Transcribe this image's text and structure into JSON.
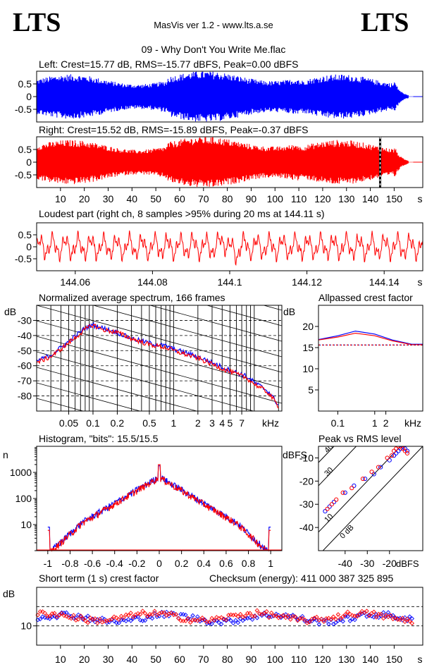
{
  "header": {
    "logo_left": "LTS",
    "logo_right": "LTS",
    "app_title": "MasVis ver 1.2 - www.lts.a.se",
    "file_title": "09 - Why Don't You Write Me.flac"
  },
  "colors": {
    "left": "#0000ff",
    "right": "#ff0000",
    "axis": "#000000",
    "grid": "#000000"
  },
  "chart_data": [
    {
      "id": "left-waveform",
      "type": "area",
      "title": "Left: Crest=15.77 dB, RMS=-15.77 dBFS, Peak=0.00 dBFS",
      "ylim": [
        -1,
        1
      ],
      "yticks": [
        "0.5",
        "0",
        "-0.5"
      ],
      "ytick_values": [
        0.5,
        0,
        -0.5
      ],
      "xlim": [
        0,
        162
      ],
      "duration_s": 158,
      "series": [
        {
          "color": "#0000ff",
          "peak": 1.0,
          "rms_dbfs": -15.77
        }
      ]
    },
    {
      "id": "right-waveform",
      "type": "area",
      "title": "Right: Crest=15.52 dB, RMS=-15.89 dBFS, Peak=-0.37 dBFS",
      "ylim": [
        -1,
        1
      ],
      "yticks": [
        "0.5",
        "0",
        "-0.5"
      ],
      "ytick_values": [
        0.5,
        0,
        -0.5
      ],
      "xlim": [
        0,
        162
      ],
      "xunit": "s",
      "xticks": [
        "10",
        "20",
        "30",
        "40",
        "50",
        "60",
        "70",
        "80",
        "90",
        "100",
        "110",
        "120",
        "130",
        "140",
        "150"
      ],
      "xtick_values": [
        10,
        20,
        30,
        40,
        50,
        60,
        70,
        80,
        90,
        100,
        110,
        120,
        130,
        140,
        150
      ],
      "marker_x": 144.11,
      "series": [
        {
          "color": "#ff0000",
          "peak": 0.96,
          "rms_dbfs": -15.89
        }
      ]
    },
    {
      "id": "loudest-part",
      "type": "line",
      "title": "Loudest part (right ch, 8 samples >95% during 20 ms at 144.11 s)",
      "ylim": [
        -1,
        1
      ],
      "yticks": [
        "0.5",
        "0",
        "-0.5"
      ],
      "ytick_values": [
        0.5,
        0,
        -0.5
      ],
      "xlim": [
        144.05,
        144.15
      ],
      "xunit": "s",
      "xticks": [
        "144.06",
        "144.08",
        "144.1",
        "144.12",
        "144.14"
      ],
      "xtick_values": [
        144.06,
        144.08,
        144.1,
        144.12,
        144.14
      ],
      "series": [
        {
          "color": "#ff0000"
        }
      ]
    },
    {
      "id": "spectrum",
      "type": "line",
      "title": "Normalized average spectrum, 166 frames",
      "ylabel": "dB",
      "ylim": [
        -90,
        -20
      ],
      "yticks": [
        "-30",
        "-40",
        "-50",
        "-60",
        "-70",
        "-80"
      ],
      "ytick_values": [
        -30,
        -40,
        -50,
        -60,
        -70,
        -80
      ],
      "xscale": "log",
      "xlim": [
        0.02,
        22
      ],
      "xunit": "kHz",
      "xticks": [
        "0.05",
        "0.1",
        "0.2",
        "0.5",
        "1",
        "2",
        "3",
        "4",
        "5",
        "7"
      ],
      "xtick_values": [
        0.05,
        0.1,
        0.2,
        0.5,
        1,
        2,
        3,
        4,
        5,
        7
      ],
      "series": [
        {
          "color": "#0000ff",
          "x": [
            0.02,
            0.03,
            0.05,
            0.08,
            0.1,
            0.13,
            0.2,
            0.3,
            0.5,
            0.8,
            1,
            2,
            3,
            5,
            8,
            10,
            15,
            20
          ],
          "y": [
            -57,
            -53,
            -44,
            -35,
            -33,
            -35,
            -38,
            -42,
            -45,
            -47,
            -49,
            -54,
            -58,
            -63,
            -67,
            -71,
            -77,
            -86
          ]
        },
        {
          "color": "#ff0000",
          "x": [
            0.02,
            0.03,
            0.05,
            0.08,
            0.1,
            0.13,
            0.2,
            0.3,
            0.5,
            0.8,
            1,
            2,
            3,
            5,
            8,
            10,
            15,
            20
          ],
          "y": [
            -58,
            -54,
            -45,
            -36,
            -33,
            -36,
            -38,
            -42,
            -46,
            -48,
            -50,
            -55,
            -59,
            -64,
            -68,
            -72,
            -78,
            -87
          ]
        }
      ]
    },
    {
      "id": "allpassed-crest",
      "type": "line",
      "title": "Allpassed crest factor",
      "ylabel": "dB",
      "ylim": [
        0,
        25
      ],
      "yticks": [
        "20",
        "15",
        "10",
        "5"
      ],
      "ytick_values": [
        20,
        15,
        10,
        5
      ],
      "xscale": "log",
      "xlim": [
        0.03,
        20
      ],
      "xunit": "kHz",
      "xticks": [
        "0.1",
        "1",
        "2"
      ],
      "xtick_values": [
        0.1,
        1,
        2
      ],
      "reference_y": 15.6,
      "series": [
        {
          "color": "#0000ff",
          "x": [
            0.03,
            0.1,
            0.3,
            1,
            3,
            10,
            20
          ],
          "y": [
            16.9,
            17.8,
            18.9,
            18.2,
            16.8,
            15.8,
            15.8
          ]
        },
        {
          "color": "#ff0000",
          "x": [
            0.03,
            0.1,
            0.3,
            1,
            3,
            10,
            20
          ],
          "y": [
            16.8,
            17.5,
            18.4,
            17.8,
            16.6,
            15.7,
            15.7
          ]
        }
      ]
    },
    {
      "id": "histogram",
      "type": "line",
      "title": "Histogram, \"bits\": 15.5/15.5",
      "ylabel": "n",
      "yscale": "log",
      "ylim": [
        1,
        10000
      ],
      "yticks": [
        "1000",
        "100",
        "10"
      ],
      "ytick_values": [
        1000,
        100,
        10
      ],
      "xlim": [
        -1.1,
        1.1
      ],
      "xticks": [
        "-1",
        "-0.8",
        "-0.6",
        "-0.4",
        "-0.2",
        "0",
        "0.2",
        "0.4",
        "0.6",
        "0.8",
        "1"
      ],
      "xtick_values": [
        -1,
        -0.8,
        -0.6,
        -0.4,
        -0.2,
        0,
        0.2,
        0.4,
        0.6,
        0.8,
        1
      ],
      "series": [
        {
          "color": "#0000ff",
          "peak_count": 700,
          "spike_count": 1800,
          "edge_count": 8
        },
        {
          "color": "#ff0000",
          "peak_count": 650,
          "spike_count": 2000,
          "edge_count": 6
        }
      ]
    },
    {
      "id": "peak-vs-rms",
      "type": "scatter",
      "title": "Peak vs RMS level",
      "ylabel": "dBFS",
      "xlabel": "dBFS",
      "xlim": [
        -52,
        -5
      ],
      "ylim": [
        -50,
        -5
      ],
      "yticks": [
        "-10",
        "-20",
        "-30",
        "-40"
      ],
      "ytick_values": [
        -10,
        -20,
        -30,
        -40
      ],
      "xticks": [
        "-40",
        "-30",
        "-20"
      ],
      "xtick_values": [
        -40,
        -30,
        -20
      ],
      "diagonal_labels": [
        "40",
        "30",
        "10",
        "0 dB"
      ],
      "diagonal_values": [
        40,
        30,
        10,
        0
      ],
      "series": [
        {
          "color": "#0000ff",
          "x": [
            -49,
            -47,
            -45,
            -40,
            -36,
            -31,
            -27,
            -24,
            -20,
            -18,
            -17,
            -16,
            -15,
            -14,
            -13,
            -12
          ],
          "y": [
            -33,
            -31,
            -29,
            -25,
            -22,
            -19,
            -17,
            -14,
            -11,
            -9,
            -8,
            -7,
            -6,
            -5,
            -6,
            -7
          ]
        },
        {
          "color": "#ff0000",
          "x": [
            -48,
            -46,
            -44,
            -41,
            -37,
            -32,
            -28,
            -25,
            -21,
            -19,
            -18,
            -17,
            -16,
            -15,
            -14,
            -13,
            -12
          ],
          "y": [
            -32,
            -30,
            -28,
            -25,
            -23,
            -19,
            -16,
            -14,
            -10,
            -9,
            -7,
            -6,
            -5,
            -5,
            -6,
            -7,
            -8
          ]
        }
      ]
    },
    {
      "id": "short-term-crest",
      "type": "scatter",
      "title": "Short term (1 s) crest factor",
      "checksum": "Checksum (energy):   411 000 387 325 895",
      "ylabel": "dB",
      "ylim": [
        5,
        20
      ],
      "yticks": [
        "10"
      ],
      "ytick_values": [
        10
      ],
      "dashed_y": [
        10,
        15
      ],
      "xlim": [
        0,
        162
      ],
      "xunit": "s",
      "xticks": [
        "10",
        "20",
        "30",
        "40",
        "50",
        "60",
        "70",
        "80",
        "90",
        "100",
        "110",
        "120",
        "130",
        "140",
        "150"
      ],
      "xtick_values": [
        10,
        20,
        30,
        40,
        50,
        60,
        70,
        80,
        90,
        100,
        110,
        120,
        130,
        140,
        150
      ],
      "series": [
        {
          "color": "#0000ff",
          "mean": 12.0
        },
        {
          "color": "#ff0000",
          "mean": 12.3
        }
      ]
    }
  ]
}
